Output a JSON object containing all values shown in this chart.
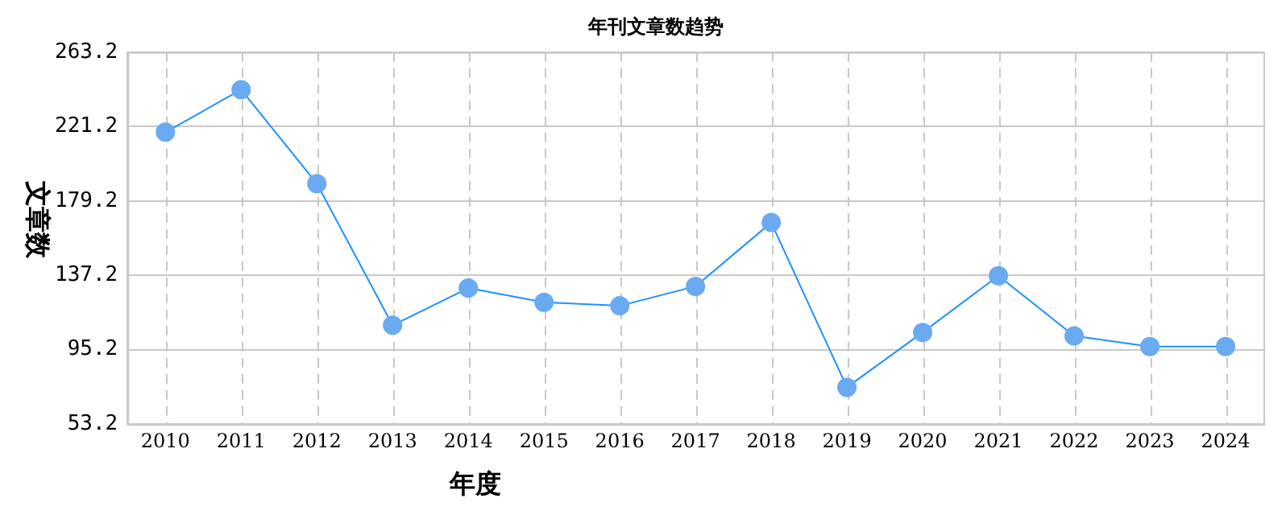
{
  "chart_data": {
    "type": "line",
    "title": "年刊文章数趋势",
    "xlabel": "年度",
    "ylabel": "文章数",
    "categories": [
      "2010",
      "2011",
      "2012",
      "2013",
      "2014",
      "2015",
      "2016",
      "2017",
      "2018",
      "2019",
      "2020",
      "2021",
      "2022",
      "2023",
      "2024"
    ],
    "series": [
      {
        "color": "#1e90ff",
        "values": [
          218,
          242,
          189,
          109,
          130,
          122,
          120,
          131,
          167,
          74,
          105,
          137,
          103,
          97,
          97
        ]
      }
    ],
    "ylim": [
      53.2,
      263.2
    ],
    "yticks": [
      {
        "value": 53.2,
        "label": "53.2"
      },
      {
        "value": 95.2,
        "label": "95.2"
      },
      {
        "value": 137.2,
        "label": "137.2"
      },
      {
        "value": 179.2,
        "label": "179.2"
      },
      {
        "value": 221.2,
        "label": "221.2"
      },
      {
        "value": 263.2,
        "label": "263.2"
      }
    ],
    "grid": true,
    "legend": false,
    "marker": "circle",
    "line_style": "solid"
  }
}
